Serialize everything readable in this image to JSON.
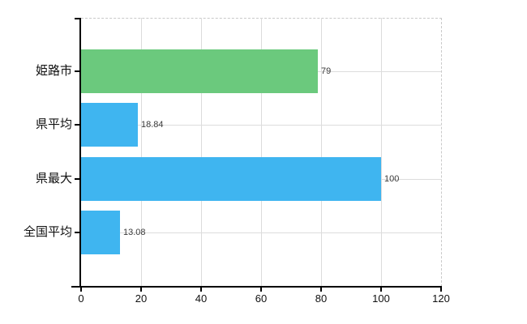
{
  "chart_data": {
    "type": "bar",
    "orientation": "horizontal",
    "categories": [
      "姫路市",
      "県平均",
      "県最大",
      "全国平均"
    ],
    "values": [
      79,
      18.84,
      100,
      13.08
    ],
    "value_labels": [
      "79",
      "18.84",
      "100",
      "13.08"
    ],
    "bar_colors": [
      "#6bc97d",
      "#3fb5f0",
      "#3fb5f0",
      "#3fb5f0"
    ],
    "xlim": [
      0,
      120
    ],
    "x_tick_values": [
      0,
      20,
      40,
      60,
      80,
      100,
      120
    ],
    "x_tick_labels": [
      "0",
      "20",
      "40",
      "60",
      "80",
      "100",
      "120"
    ],
    "grid": true,
    "legend": false,
    "colors": {
      "bar_green": "#6bc97d",
      "bar_blue": "#3fb5f0",
      "grid_line": "#dcdcdc",
      "grid_border_dashed": "#c9c9c9",
      "axis": "#000000",
      "tick_label": "#111111",
      "value_label": "#3a3a3a"
    }
  }
}
